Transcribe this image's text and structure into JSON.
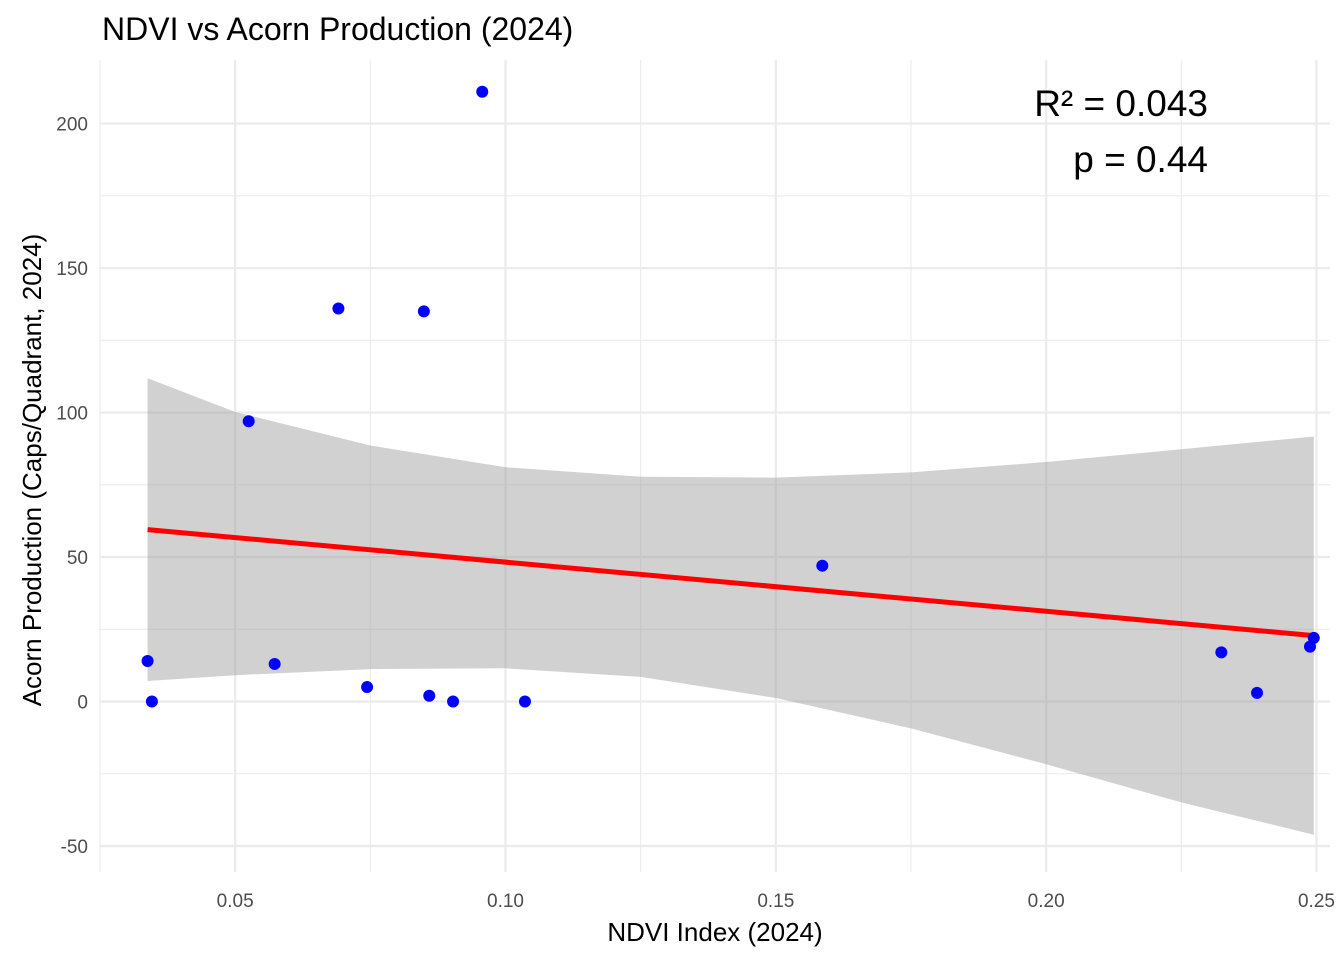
{
  "chart_data": {
    "type": "scatter",
    "title": "NDVI vs Acorn Production (2024)",
    "xlabel": "NDVI Index (2024)",
    "ylabel": "Acorn Production (Caps/Quadrant, 2024)",
    "xlim": [
      0.025,
      0.2525
    ],
    "ylim": [
      -59,
      222
    ],
    "x_ticks": [
      0.05,
      0.1,
      0.15,
      0.2,
      0.25
    ],
    "x_tick_labels": [
      "0.05",
      "0.10",
      "0.15",
      "0.20",
      "0.25"
    ],
    "x_minor_ticks": [
      0.025,
      0.075,
      0.125,
      0.175,
      0.225
    ],
    "y_ticks": [
      -50,
      0,
      50,
      100,
      150,
      200
    ],
    "y_tick_labels": [
      "-50",
      "0",
      "50",
      "100",
      "150",
      "200"
    ],
    "y_minor_ticks": [
      -25,
      25,
      75,
      125,
      175
    ],
    "grid": true,
    "points": [
      {
        "x": 0.0338,
        "y": 14
      },
      {
        "x": 0.0346,
        "y": 0
      },
      {
        "x": 0.0525,
        "y": 97
      },
      {
        "x": 0.0573,
        "y": 13
      },
      {
        "x": 0.0691,
        "y": 136
      },
      {
        "x": 0.0744,
        "y": 5
      },
      {
        "x": 0.0849,
        "y": 135
      },
      {
        "x": 0.0859,
        "y": 2
      },
      {
        "x": 0.0903,
        "y": 0
      },
      {
        "x": 0.0957,
        "y": 211
      },
      {
        "x": 0.1036,
        "y": 0
      },
      {
        "x": 0.1586,
        "y": 47
      },
      {
        "x": 0.2324,
        "y": 17
      },
      {
        "x": 0.239,
        "y": 3
      },
      {
        "x": 0.2488,
        "y": 19
      },
      {
        "x": 0.2495,
        "y": 22
      }
    ],
    "point_color": "#0000ff",
    "fit_line": {
      "color": "#ff0000",
      "x": [
        0.0338,
        0.2495
      ],
      "y": [
        59.5,
        22.8
      ]
    },
    "confidence_band": {
      "color": "#999999",
      "opacity": 0.45,
      "x": [
        0.0338,
        0.05,
        0.075,
        0.1,
        0.125,
        0.15,
        0.175,
        0.2,
        0.225,
        0.2495
      ],
      "upper": [
        111.9,
        100.2,
        88.6,
        81.1,
        77.8,
        77.5,
        79.3,
        82.9,
        87.3,
        91.7
      ],
      "lower": [
        7.1,
        9.1,
        11.2,
        11.5,
        8.5,
        1.2,
        -9.3,
        -21.7,
        -34.9,
        -46.1
      ]
    },
    "annotations": [
      {
        "text": "R² = 0.043"
      },
      {
        "text": "p = 0.44"
      }
    ]
  }
}
